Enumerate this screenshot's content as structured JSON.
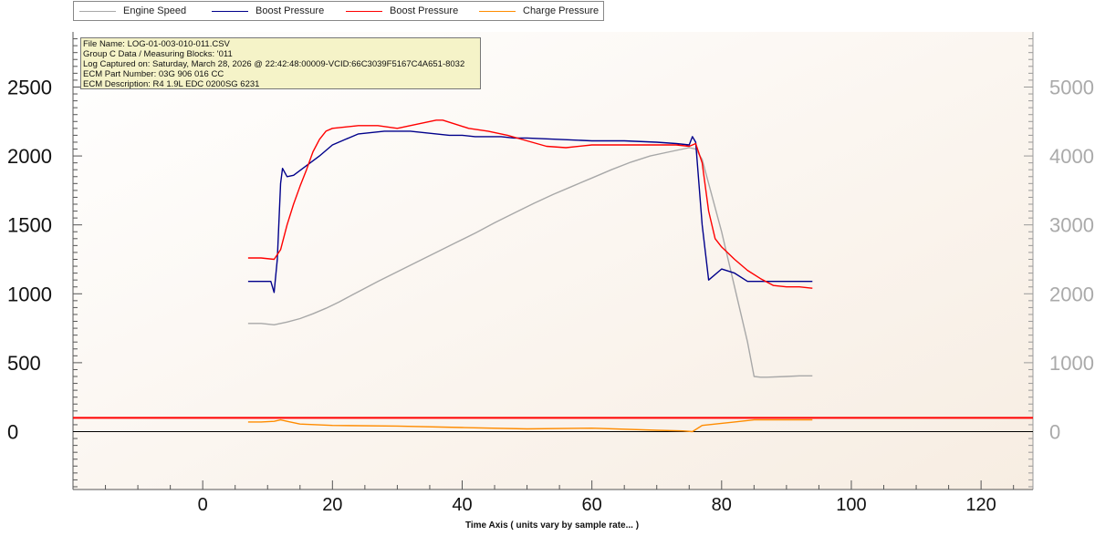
{
  "chart_data": {
    "type": "line",
    "xlabel": "Time Axis ( units vary by sample rate... )",
    "xlim": [
      -20,
      128
    ],
    "x_ticks": [
      "0",
      "20",
      "40",
      "60",
      "80",
      "100",
      "120"
    ],
    "x_tick_values": [
      0,
      20,
      40,
      60,
      80,
      100,
      120
    ],
    "y_left": {
      "lim": [
        -420,
        2900
      ],
      "ticks": [
        "0",
        "500",
        "1000",
        "1500",
        "2000",
        "2500"
      ],
      "tick_values": [
        0,
        500,
        1000,
        1500,
        2000,
        2500
      ]
    },
    "y_right": {
      "lim": [
        -840,
        5800
      ],
      "ticks": [
        "0",
        "1000",
        "2000",
        "3000",
        "4000",
        "5000"
      ],
      "tick_values": [
        0,
        1000,
        2000,
        3000,
        4000,
        5000
      ]
    },
    "grid": false,
    "legend_position": "top",
    "reference_line": {
      "y": 100,
      "color": "#ff0000"
    },
    "series": [
      {
        "name": "Engine Speed",
        "color": "#a8a8a8",
        "axis": "right",
        "x": [
          7,
          9,
          11,
          13,
          15,
          17,
          19,
          21,
          23,
          25,
          27,
          30,
          33,
          36,
          39,
          42,
          45,
          48,
          51,
          54,
          57,
          60,
          63,
          66,
          69,
          72,
          75,
          76,
          77,
          78,
          80,
          82,
          84,
          85,
          86,
          87,
          90,
          92,
          94
        ],
        "y": [
          1570,
          1570,
          1550,
          1590,
          1640,
          1710,
          1790,
          1880,
          1980,
          2080,
          2180,
          2320,
          2460,
          2600,
          2740,
          2880,
          3030,
          3170,
          3310,
          3440,
          3560,
          3680,
          3800,
          3910,
          4000,
          4060,
          4120,
          4100,
          3950,
          3600,
          2900,
          2100,
          1300,
          800,
          790,
          790,
          800,
          810,
          810
        ]
      },
      {
        "name": "Boost Pressure",
        "color": "#00008b",
        "axis": "left",
        "x": [
          7,
          9,
          10.5,
          11,
          11.5,
          12,
          12.3,
          13,
          14,
          16,
          18,
          20,
          22,
          24,
          26,
          28,
          30,
          32,
          34,
          36,
          38,
          40,
          42,
          44,
          46,
          48,
          50,
          55,
          60,
          65,
          70,
          73,
          75,
          75.5,
          76,
          77,
          78,
          80,
          82,
          84,
          87,
          90,
          94
        ],
        "y": [
          1090,
          1090,
          1090,
          1010,
          1250,
          1800,
          1910,
          1850,
          1860,
          1930,
          2000,
          2080,
          2120,
          2160,
          2170,
          2180,
          2180,
          2180,
          2170,
          2160,
          2150,
          2150,
          2140,
          2140,
          2140,
          2130,
          2130,
          2120,
          2110,
          2110,
          2100,
          2090,
          2080,
          2140,
          2100,
          1500,
          1100,
          1180,
          1150,
          1090,
          1090,
          1090,
          1090
        ]
      },
      {
        "name": "Boost Pressure",
        "color": "#ff0000",
        "axis": "left",
        "x": [
          7,
          9,
          11,
          12,
          13,
          14,
          15,
          16,
          17,
          18,
          19,
          20,
          22,
          24,
          27,
          30,
          33,
          36,
          37,
          39,
          41,
          44,
          47,
          50,
          53,
          56,
          60,
          65,
          70,
          73,
          75,
          76,
          77,
          78,
          79,
          80,
          82,
          84,
          86,
          88,
          90,
          92,
          94
        ],
        "y": [
          1260,
          1260,
          1250,
          1320,
          1500,
          1650,
          1780,
          1900,
          2030,
          2120,
          2180,
          2200,
          2210,
          2220,
          2220,
          2200,
          2230,
          2260,
          2260,
          2230,
          2200,
          2180,
          2150,
          2110,
          2070,
          2060,
          2080,
          2080,
          2080,
          2080,
          2070,
          2090,
          1950,
          1600,
          1400,
          1340,
          1250,
          1170,
          1110,
          1060,
          1050,
          1050,
          1040
        ]
      },
      {
        "name": "Charge Pressure",
        "color": "#ff8c00",
        "axis": "left",
        "x": [
          7,
          9,
          11,
          12,
          13,
          15,
          20,
          30,
          40,
          50,
          60,
          70,
          74,
          75.5,
          76.5,
          77,
          79,
          82,
          85,
          90,
          94
        ],
        "y": [
          70,
          70,
          75,
          85,
          75,
          55,
          45,
          40,
          30,
          20,
          25,
          10,
          5,
          0,
          30,
          45,
          55,
          70,
          85,
          85,
          85
        ]
      }
    ]
  },
  "info_box": {
    "line1": "File Name: LOG-01-003-010-011.CSV",
    "line2": "Group C Data / Measuring Blocks: '011",
    "line3": "Log Captured on: Saturday, March 28, 2026 @ 22:42:48:00009-VCID:66C3039F5167C4A651-8032",
    "line4": "ECM Part Number: 03G 906 016 CC",
    "line5": "ECM Description: R4 1.9L EDC 0200SG  6231"
  },
  "legend": [
    {
      "label": "Engine Speed",
      "color": "#a8a8a8"
    },
    {
      "label": "Boost Pressure",
      "color": "#00008b"
    },
    {
      "label": "Boost Pressure",
      "color": "#ff0000"
    },
    {
      "label": "Charge Pressure",
      "color": "#ff8c00"
    }
  ]
}
